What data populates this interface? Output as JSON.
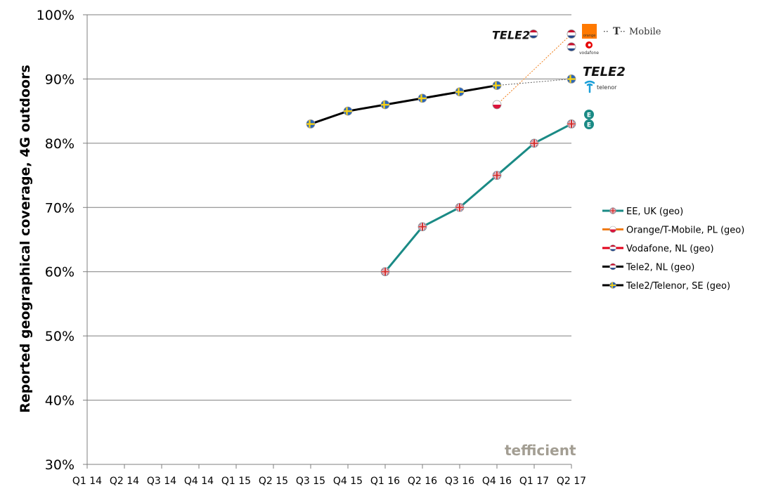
{
  "chart_data": {
    "type": "line",
    "ylabel": "Reported geographical coverage, 4G outdoors",
    "xlabel": "",
    "ylim": [
      30,
      100
    ],
    "yticks": [
      "30%",
      "40%",
      "50%",
      "60%",
      "70%",
      "80%",
      "90%",
      "100%"
    ],
    "categories": [
      "Q1 14",
      "Q2 14",
      "Q3 14",
      "Q4 14",
      "Q1 15",
      "Q2 15",
      "Q3 15",
      "Q4 15",
      "Q1 16",
      "Q2 16",
      "Q3 16",
      "Q4 16",
      "Q1 17",
      "Q2 17"
    ],
    "grid": "horizontal",
    "legend_position": "right",
    "series": [
      {
        "name": "EE, UK (geo)",
        "color": "#1a8a85",
        "flag": "uk",
        "values": [
          null,
          null,
          null,
          null,
          null,
          null,
          null,
          null,
          60,
          67,
          70,
          75,
          80,
          83
        ]
      },
      {
        "name": "Orange/T-Mobile, PL (geo)",
        "color": "#f07c16",
        "flag": "pl",
        "values": [
          null,
          null,
          null,
          null,
          null,
          null,
          null,
          null,
          null,
          null,
          null,
          86,
          null,
          97
        ]
      },
      {
        "name": "Vodafone, NL (geo)",
        "color": "#e2001a",
        "flag": "nl",
        "values": [
          null,
          null,
          null,
          null,
          null,
          null,
          null,
          null,
          null,
          null,
          null,
          null,
          null,
          95
        ]
      },
      {
        "name": "Tele2, NL (geo)",
        "color": "#000000",
        "flag": "nl",
        "values": [
          null,
          null,
          null,
          null,
          null,
          null,
          null,
          null,
          null,
          null,
          null,
          null,
          null,
          97
        ]
      },
      {
        "name": "Tele2/Telenor, SE (geo)",
        "color": "#000000",
        "flag": "se",
        "values": [
          null,
          null,
          null,
          null,
          null,
          null,
          83,
          85,
          86,
          87,
          88,
          89,
          null,
          90
        ]
      }
    ],
    "brand_labels": {
      "tele2": "TELE2",
      "orange": "orange",
      "tmobile": "Mobile",
      "vodafone": "vodafone",
      "telenor": "telenor",
      "ee": "EE"
    },
    "watermark": "tefficient"
  }
}
